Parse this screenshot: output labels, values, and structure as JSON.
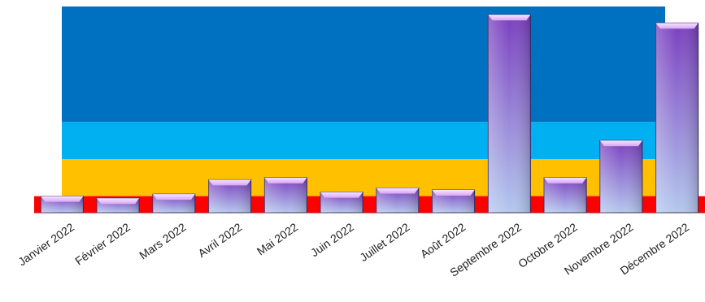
{
  "chart_data": {
    "type": "bar",
    "categories": [
      "Janvier 2022",
      "Février 2022",
      "Mars 2022",
      "Avril 2022",
      "Mai 2022",
      "Juin 2022",
      "Juillet 2022",
      "Août 2022",
      "Septembre 2022",
      "Octobre 2022",
      "Novembre 2022",
      "Décembre 2022"
    ],
    "values": [
      8,
      7,
      9,
      16,
      17,
      10,
      12,
      11,
      96,
      17,
      35,
      92
    ],
    "title": "",
    "xlabel": "",
    "ylabel": "",
    "ylim": [
      0,
      100
    ],
    "grid": false,
    "legend": "none",
    "background_bands": [
      {
        "from": 0,
        "to": 8,
        "color": "#ff0000"
      },
      {
        "from": 8,
        "to": 26,
        "color": "#ffc000"
      },
      {
        "from": 26,
        "to": 44,
        "color": "#00b0f0"
      },
      {
        "from": 44,
        "to": 100,
        "color": "#0070c0"
      }
    ],
    "bar_colors": {
      "top": "#7a3fbf",
      "bottom": "#b4c8ee",
      "cap": "#d9a6f5"
    }
  }
}
